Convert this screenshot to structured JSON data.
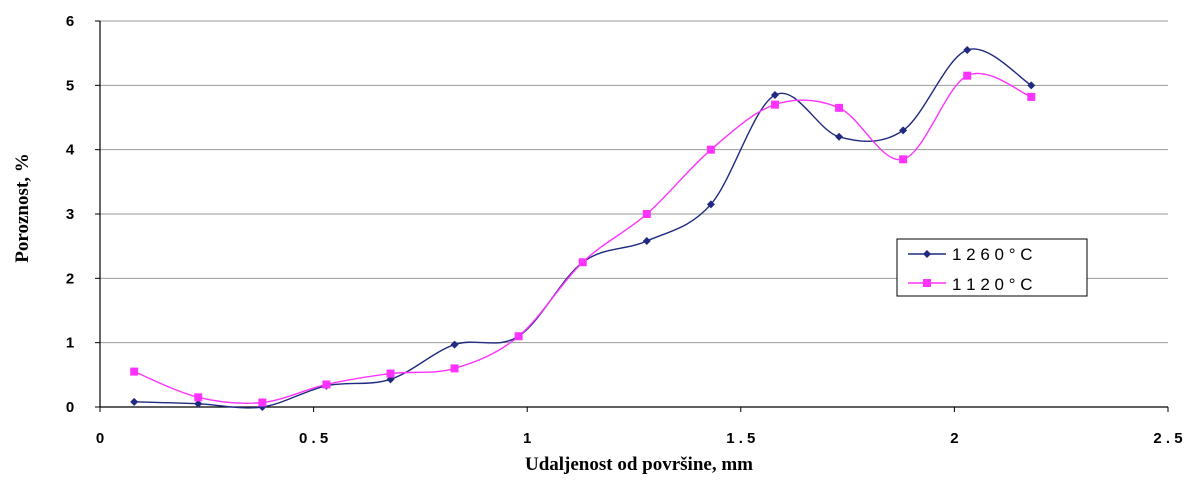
{
  "chart_data": {
    "type": "line",
    "title": "",
    "xlabel": "Udaljenost od površine, mm",
    "ylabel": "Poroznost, %",
    "xlim": [
      0,
      2.5
    ],
    "ylim": [
      0,
      6
    ],
    "x_ticks": [
      "0",
      "0 . 5",
      "1",
      "1 . 5",
      "2",
      "2 . 5"
    ],
    "x_tick_values": [
      0,
      0.5,
      1,
      1.5,
      2,
      2.5
    ],
    "y_ticks": [
      "0",
      "1",
      "2",
      "3",
      "4",
      "5",
      "6"
    ],
    "y_tick_values": [
      0,
      1,
      2,
      3,
      4,
      5,
      6
    ],
    "grid": "horizontal",
    "legend_position": "right",
    "series": [
      {
        "name": "1 2 6 0   ° C",
        "color": "#1f2a80",
        "marker": "diamond",
        "x": [
          0.08,
          0.23,
          0.38,
          0.53,
          0.68,
          0.83,
          0.98,
          1.13,
          1.28,
          1.43,
          1.58,
          1.73,
          1.88,
          2.03,
          2.18
        ],
        "y": [
          0.08,
          0.05,
          0.0,
          0.33,
          0.43,
          0.97,
          1.1,
          2.25,
          2.58,
          3.15,
          4.85,
          4.2,
          4.3,
          5.55,
          5.0
        ]
      },
      {
        "name": "1 1 2 0   ° C",
        "color": "#ff33ff",
        "marker": "square",
        "x": [
          0.08,
          0.23,
          0.38,
          0.53,
          0.68,
          0.83,
          0.98,
          1.13,
          1.28,
          1.43,
          1.58,
          1.73,
          1.88,
          2.03,
          2.18
        ],
        "y": [
          0.55,
          0.15,
          0.07,
          0.35,
          0.52,
          0.6,
          1.1,
          2.25,
          3.0,
          4.0,
          4.7,
          4.65,
          3.85,
          5.15,
          4.82
        ]
      }
    ]
  }
}
